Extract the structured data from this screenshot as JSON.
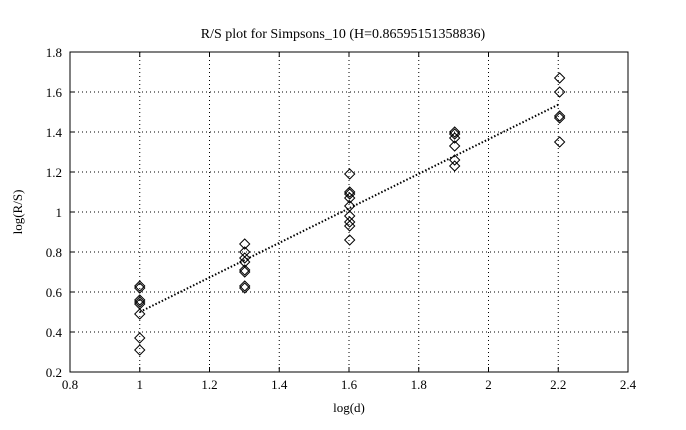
{
  "chart_data": {
    "type": "scatter",
    "title": "R/S plot for Simpsons_10 (H=0.86595151358836)",
    "xlabel": "log(d)",
    "ylabel": "log(R/S)",
    "xlim": [
      0.8,
      2.4
    ],
    "ylim": [
      0.2,
      1.8
    ],
    "xticks": [
      0.8,
      1,
      1.2,
      1.4,
      1.6,
      1.8,
      2,
      2.2,
      2.4
    ],
    "yticks": [
      0.2,
      0.4,
      0.6,
      0.8,
      1,
      1.2,
      1.4,
      1.6,
      1.8
    ],
    "xtick_labels": [
      "0.8",
      "1",
      "1.2",
      "1.4",
      "1.6",
      "1.8",
      "2",
      "2.2",
      "2.4"
    ],
    "ytick_labels": [
      "0.2",
      "0.4",
      "0.6",
      "0.8",
      "1",
      "1.2",
      "1.4",
      "1.6",
      "1.8"
    ],
    "grid": true,
    "grid_style": "dotted",
    "marker": "diamond",
    "series": [
      {
        "kind": "points",
        "x": [
          1.0,
          1.0,
          1.0,
          1.0,
          1.0,
          1.0,
          1.0,
          1.0,
          1.301,
          1.301,
          1.301,
          1.301,
          1.301,
          1.301,
          1.301,
          1.301,
          1.602,
          1.602,
          1.602,
          1.602,
          1.602,
          1.602,
          1.602,
          1.602,
          1.602,
          1.903,
          1.903,
          1.903,
          1.903,
          1.903,
          1.903,
          2.204,
          2.204,
          2.204,
          2.204,
          2.204
        ],
        "y": [
          0.63,
          0.62,
          0.56,
          0.55,
          0.54,
          0.49,
          0.37,
          0.31,
          0.84,
          0.8,
          0.77,
          0.75,
          0.71,
          0.7,
          0.63,
          0.62,
          1.19,
          1.1,
          1.09,
          1.07,
          1.03,
          0.98,
          0.95,
          0.93,
          0.86,
          1.4,
          1.39,
          1.37,
          1.33,
          1.26,
          1.23,
          1.67,
          1.6,
          1.48,
          1.47,
          1.35
        ]
      },
      {
        "kind": "fit_line",
        "x": [
          1.0,
          2.204
        ],
        "y": [
          0.5,
          1.54
        ]
      }
    ]
  }
}
